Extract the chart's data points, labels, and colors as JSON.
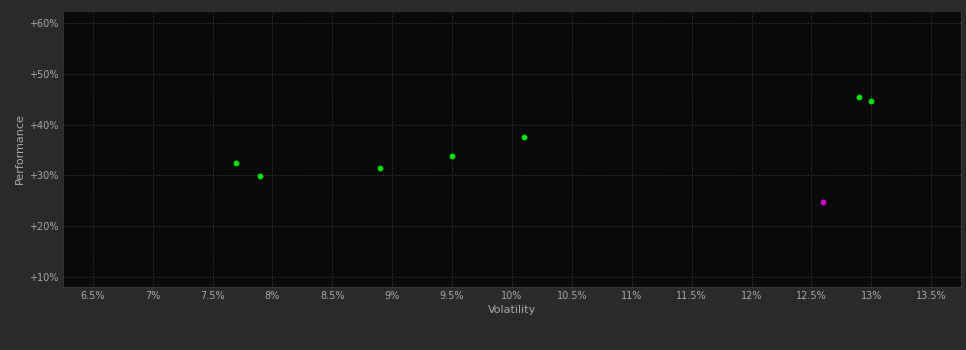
{
  "background_color": "#2a2a2a",
  "plot_bg_color": "#0a0a0a",
  "grid_color": "#404040",
  "text_color": "#aaaaaa",
  "xlabel": "Volatility",
  "ylabel": "Performance",
  "xlim": [
    0.0625,
    0.1375
  ],
  "ylim": [
    0.08,
    0.625
  ],
  "xticks": [
    0.065,
    0.07,
    0.075,
    0.08,
    0.085,
    0.09,
    0.095,
    0.1,
    0.105,
    0.11,
    0.115,
    0.12,
    0.125,
    0.13,
    0.135
  ],
  "yticks": [
    0.1,
    0.2,
    0.3,
    0.4,
    0.5,
    0.6
  ],
  "xtick_labels": [
    "6.5%",
    "7%",
    "7.5%",
    "8%",
    "8.5%",
    "9%",
    "9.5%",
    "10%",
    "10.5%",
    "11%",
    "11.5%",
    "12%",
    "12.5%",
    "13%",
    "13.5%"
  ],
  "ytick_labels": [
    "+10%",
    "+20%",
    "+30%",
    "+40%",
    "+50%",
    "+60%"
  ],
  "points_green": [
    [
      0.077,
      0.325
    ],
    [
      0.079,
      0.298
    ],
    [
      0.089,
      0.315
    ],
    [
      0.095,
      0.338
    ],
    [
      0.101,
      0.375
    ],
    [
      0.129,
      0.455
    ],
    [
      0.13,
      0.447
    ]
  ],
  "points_magenta": [
    [
      0.126,
      0.248
    ]
  ],
  "point_color_green": "#00dd00",
  "point_color_magenta": "#cc00cc",
  "point_size": 18
}
